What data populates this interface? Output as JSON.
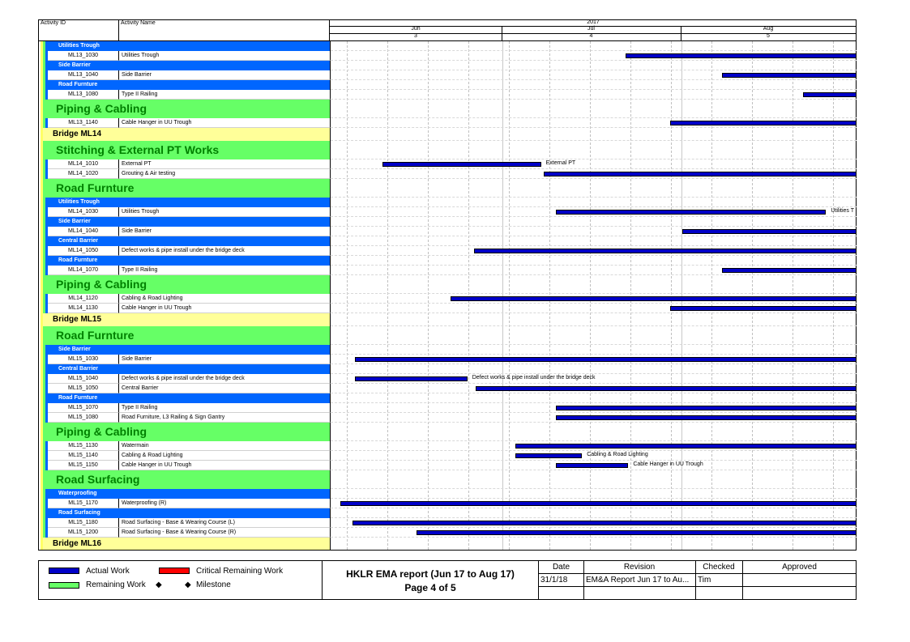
{
  "header": {
    "activity_id_label": "Activity ID",
    "activity_name_label": "Activity Name",
    "year": "2017",
    "months": [
      "Jun",
      "Jul",
      "Aug"
    ],
    "quarters": [
      "3",
      "4",
      "5"
    ]
  },
  "colors": {
    "wbs_blue": "#0066ff",
    "wbs_green": "#66ff66",
    "wbs_yellow": "#ffff99",
    "bar_actual": "#0000c8",
    "bar_critical": "#ff0000",
    "bar_remaining": "#66ff66"
  },
  "rows": [
    {
      "kind": "wbs_blue",
      "label": "Utilities Trough"
    },
    {
      "kind": "activity",
      "id": "ML13_1030",
      "name": "Utilities Trough",
      "bar": {
        "start": 0.561,
        "end": 1.0
      }
    },
    {
      "kind": "wbs_blue",
      "label": "Side Barrier"
    },
    {
      "kind": "activity",
      "id": "ML13_1040",
      "name": "Side Barrier",
      "bar": {
        "start": 0.744,
        "end": 1.0
      }
    },
    {
      "kind": "wbs_blue",
      "label": "Road Furnture"
    },
    {
      "kind": "activity",
      "id": "ML13_1080",
      "name": "Type II Railing",
      "bar": {
        "start": 0.898,
        "end": 1.0
      }
    },
    {
      "kind": "wbs_green",
      "label": "Piping & Cabling"
    },
    {
      "kind": "activity",
      "id": "ML13_1140",
      "name": "Cable Hanger in UU Trough",
      "bar": {
        "start": 0.646,
        "end": 1.0
      }
    },
    {
      "kind": "wbs_yellow",
      "label": "Bridge ML14"
    },
    {
      "kind": "wbs_green",
      "label": "Stitching & External PT Works"
    },
    {
      "kind": "activity",
      "id": "ML14_1010",
      "name": "External PT",
      "bar": {
        "start": 0.098,
        "end": 0.4
      },
      "bar_label": "External PT"
    },
    {
      "kind": "activity",
      "id": "ML14_1020",
      "name": "Grouting & Air testing",
      "bar": {
        "start": 0.406,
        "end": 1.0
      }
    },
    {
      "kind": "wbs_green",
      "label": "Road Furnture"
    },
    {
      "kind": "wbs_blue",
      "label": "Utilities Trough"
    },
    {
      "kind": "activity",
      "id": "ML14_1030",
      "name": "Utilities Trough",
      "bar": {
        "start": 0.428,
        "end": 0.942
      },
      "bar_label": "Utilities T"
    },
    {
      "kind": "wbs_blue",
      "label": "Side Barrier"
    },
    {
      "kind": "activity",
      "id": "ML14_1040",
      "name": "Side Barrier",
      "bar": {
        "start": 0.668,
        "end": 1.0
      }
    },
    {
      "kind": "wbs_blue",
      "label": "Central Barrier"
    },
    {
      "kind": "activity",
      "id": "ML14_1050",
      "name": "Defect works & pipe install under the bridge deck",
      "bar": {
        "start": 0.272,
        "end": 1.0
      }
    },
    {
      "kind": "wbs_blue",
      "label": "Road Furnture"
    },
    {
      "kind": "activity",
      "id": "ML14_1070",
      "name": "Type II Railing",
      "bar": {
        "start": 0.744,
        "end": 1.0
      }
    },
    {
      "kind": "wbs_green",
      "label": "Piping & Cabling"
    },
    {
      "kind": "activity",
      "id": "ML14_1120",
      "name": "Cabling & Road Lighting",
      "bar": {
        "start": 0.228,
        "end": 1.0
      }
    },
    {
      "kind": "activity",
      "id": "ML14_1130",
      "name": "Cable Hanger in UU Trough",
      "bar": {
        "start": 0.646,
        "end": 1.0
      }
    },
    {
      "kind": "wbs_yellow",
      "label": "Bridge ML15"
    },
    {
      "kind": "wbs_green",
      "label": "Road Furnture"
    },
    {
      "kind": "wbs_blue",
      "label": "Side Barrier"
    },
    {
      "kind": "activity",
      "id": "ML15_1030",
      "name": "Side Barrier",
      "bar": {
        "start": 0.046,
        "end": 1.0
      }
    },
    {
      "kind": "wbs_blue",
      "label": "Central Barrier"
    },
    {
      "kind": "activity",
      "id": "ML15_1040",
      "name": "Defect works & pipe install under the bridge deck",
      "bar": {
        "start": 0.046,
        "end": 0.26
      },
      "bar_label": "Defect works & pipe install under the bridge deck"
    },
    {
      "kind": "activity",
      "id": "ML15_1050",
      "name": "Central Barrier",
      "bar": {
        "start": 0.276,
        "end": 1.0
      }
    },
    {
      "kind": "wbs_blue",
      "label": "Road Furnture"
    },
    {
      "kind": "activity",
      "id": "ML15_1070",
      "name": "Type II Railing",
      "bar": {
        "start": 0.428,
        "end": 1.0
      }
    },
    {
      "kind": "activity",
      "id": "ML15_1080",
      "name": "Road Furniture, L3 Railing & Sign Gantry",
      "bar": {
        "start": 0.428,
        "end": 1.0
      }
    },
    {
      "kind": "wbs_green",
      "label": "Piping & Cabling"
    },
    {
      "kind": "activity",
      "id": "ML15_1130",
      "name": "Watermain",
      "bar": {
        "start": 0.352,
        "end": 1.0
      }
    },
    {
      "kind": "activity",
      "id": "ML15_1140",
      "name": "Cabling & Road Lighting",
      "bar": {
        "start": 0.352,
        "end": 0.478
      },
      "bar_label": "Cabling & Road Lighting"
    },
    {
      "kind": "activity",
      "id": "ML15_1150",
      "name": "Cable Hanger in UU Trough",
      "bar": {
        "start": 0.428,
        "end": 0.566
      },
      "bar_label": "Cable Hanger in UU Trough"
    },
    {
      "kind": "wbs_green",
      "label": "Road Surfacing"
    },
    {
      "kind": "wbs_blue",
      "label": "Waterproofing"
    },
    {
      "kind": "activity",
      "id": "ML15_1170",
      "name": "Waterproofing (R)",
      "bar": {
        "start": 0.018,
        "end": 1.0
      }
    },
    {
      "kind": "wbs_blue",
      "label": "Road Surfacing"
    },
    {
      "kind": "activity",
      "id": "ML15_1180",
      "name": "Road Surfacing - Base & Wearing Course (L)",
      "bar": {
        "start": 0.042,
        "end": 1.0
      }
    },
    {
      "kind": "activity",
      "id": "ML15_1200",
      "name": "Road Surfacing - Base & Wearing Course (R)",
      "bar": {
        "start": 0.164,
        "end": 1.0
      }
    },
    {
      "kind": "wbs_yellow",
      "label": "Bridge ML16"
    }
  ],
  "legend": {
    "actual_work": "Actual Work",
    "critical_remaining": "Critical Remaining Work",
    "remaining_work": "Remaining Work",
    "milestone": "Milestone"
  },
  "report": {
    "title": "HKLR EMA report (Jun 17 to Aug 17)",
    "page": "Page 4 of 5"
  },
  "revision_table": {
    "headers": [
      "Date",
      "Revision",
      "Checked",
      "Approved"
    ],
    "row": [
      "31/1/18",
      "EM&A Report Jun 17 to Au...",
      "Tim",
      ""
    ]
  }
}
